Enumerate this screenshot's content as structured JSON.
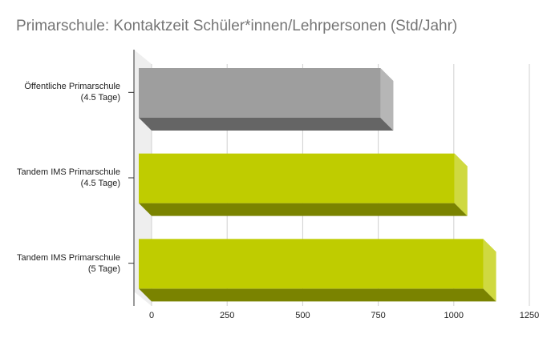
{
  "chart_data": {
    "type": "bar3d",
    "title": "Primarschule: Kontaktzeit Schüler*innen/Lehrpersonen (Std/Jahr)",
    "categories": [
      "Öffentliche Primarschule (4.5 Tage)",
      "Tandem IMS Primarschule (4.5 Tage)",
      "Tandem IMS Primarschule (5 Tage)"
    ],
    "values": [
      800,
      1045,
      1140
    ],
    "colors": [
      "#9e9e9e",
      "#bfcc00",
      "#bfcc00"
    ],
    "xlim": [
      0,
      1250
    ],
    "xticks": [
      0,
      250,
      500,
      750,
      1000,
      1250
    ],
    "grid": true
  }
}
